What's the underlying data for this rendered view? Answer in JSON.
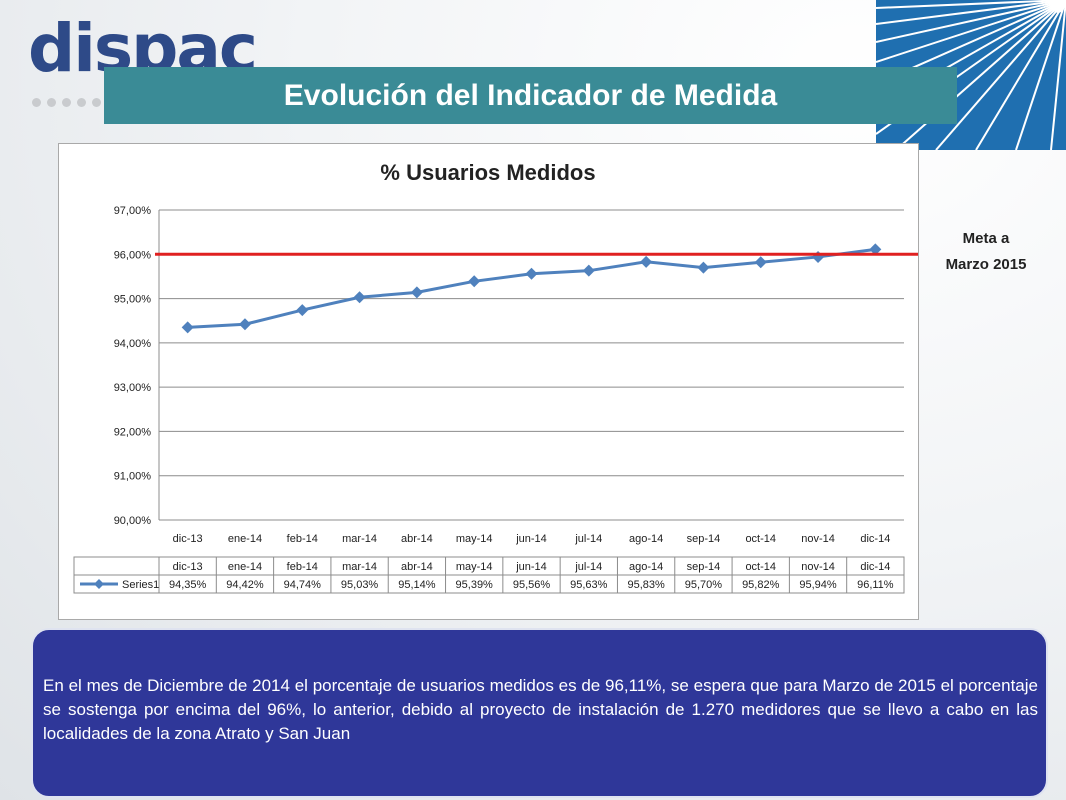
{
  "slide": {
    "logo_text": "dispac",
    "title": "Evolución del Indicador de Medida",
    "meta_label_line1": "Meta a",
    "meta_label_line2": "Marzo 2015",
    "paragraph": "En el mes de Diciembre de 2014 el porcentaje de usuarios medidos es de 96,11%, se espera que para Marzo de 2015 el porcentaje se sostenga por encima del 96%, lo anterior, debido al proyecto de instalación de 1.270 medidores que se llevo a cabo en las localidades de la zona Atrato y San Juan"
  },
  "colors": {
    "title_band": "#3a8b96",
    "text_box": "#2f3799",
    "series": "#4f81bd",
    "target_line": "#e02020"
  },
  "chart_data": {
    "type": "line",
    "title": "% Usuarios Medidos",
    "categories": [
      "dic-13",
      "ene-14",
      "feb-14",
      "mar-14",
      "abr-14",
      "may-14",
      "jun-14",
      "jul-14",
      "ago-14",
      "sep-14",
      "oct-14",
      "nov-14",
      "dic-14"
    ],
    "series": [
      {
        "name": "Series1",
        "values": [
          94.35,
          94.42,
          94.74,
          95.03,
          95.14,
          95.39,
          95.56,
          95.63,
          95.83,
          95.7,
          95.82,
          95.94,
          96.11
        ],
        "labels": [
          "94,35%",
          "94,42%",
          "94,74%",
          "95,03%",
          "95,14%",
          "95,39%",
          "95,56%",
          "95,63%",
          "95,83%",
          "95,70%",
          "95,82%",
          "95,94%",
          "96,11%"
        ]
      }
    ],
    "target": 96.0,
    "ylim": [
      90,
      97
    ],
    "yticks": [
      "90,00%",
      "91,00%",
      "92,00%",
      "93,00%",
      "94,00%",
      "95,00%",
      "96,00%",
      "97,00%"
    ],
    "grid": true,
    "data_table": true
  }
}
